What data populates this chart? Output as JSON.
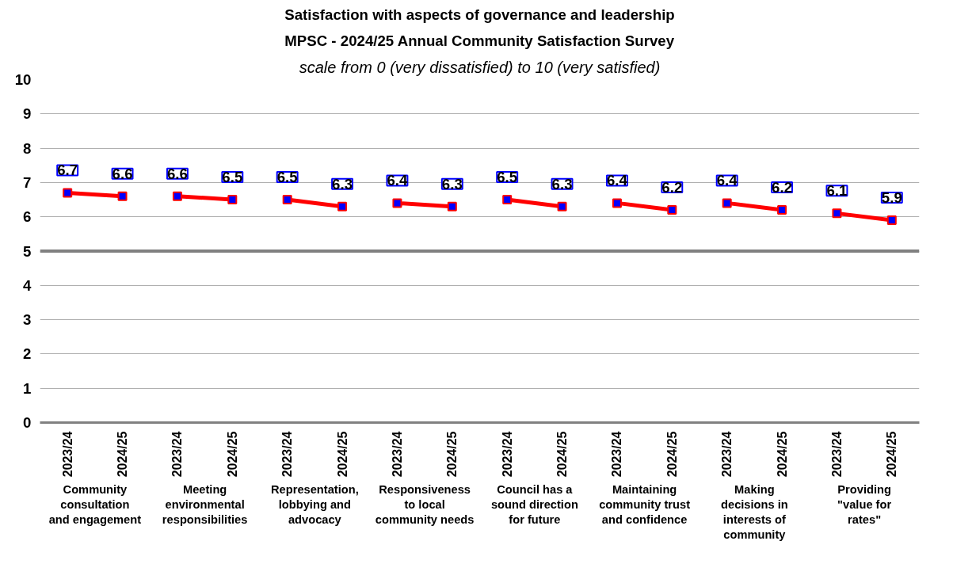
{
  "chart_data": {
    "type": "line",
    "title": "Satisfaction with aspects of governance and leadership",
    "subtitle": "MPSC - 2024/25 Annual Community Satisfaction Survey",
    "annotations": [
      "scale from 0 (very dissatisfied) to 10 (very satisfied)",
      "Community consultation and engagement",
      "Meeting environmental responsibilities",
      "Representation, lobbying and advocacy",
      "Responsiveness to local community needs",
      "Council has a sound direction for future",
      "Maintaining community trust and confidence",
      "Making decisions in interests of community",
      "Providing \"value for rates\""
    ],
    "categories": [
      "2023/24",
      "2024/25",
      "2023/24",
      "2024/25",
      "2023/24",
      "2024/25",
      "2023/24",
      "2024/25",
      "2023/24",
      "2024/25",
      "2023/24",
      "2024/25",
      "2023/24",
      "2024/25",
      "2023/24",
      "2024/25"
    ],
    "series": [
      {
        "color": "#ff0000",
        "values": [
          6.7,
          6.6,
          null,
          null,
          null,
          null,
          null,
          null,
          null,
          null,
          null,
          null,
          null,
          null,
          null,
          null
        ]
      },
      {
        "color": "#ff0000",
        "values": [
          null,
          null,
          6.6,
          6.5,
          null,
          null,
          null,
          null,
          null,
          null,
          null,
          null,
          null,
          null,
          null,
          null
        ]
      },
      {
        "color": "#ff0000",
        "values": [
          null,
          null,
          null,
          null,
          6.5,
          6.3,
          null,
          null,
          null,
          null,
          null,
          null,
          null,
          null,
          null,
          null
        ]
      },
      {
        "color": "#ff0000",
        "values": [
          null,
          null,
          null,
          null,
          null,
          null,
          6.4,
          6.3,
          null,
          null,
          null,
          null,
          null,
          null,
          null,
          null
        ]
      },
      {
        "color": "#ff0000",
        "values": [
          null,
          null,
          null,
          null,
          null,
          null,
          null,
          null,
          6.5,
          6.3,
          null,
          null,
          null,
          null,
          null,
          null
        ]
      },
      {
        "color": "#ff0000",
        "values": [
          null,
          null,
          null,
          null,
          null,
          null,
          null,
          null,
          null,
          null,
          6.4,
          6.2,
          null,
          null,
          null,
          null
        ]
      },
      {
        "color": "#ff0000",
        "values": [
          null,
          null,
          null,
          null,
          null,
          null,
          null,
          null,
          null,
          null,
          null,
          null,
          6.4,
          6.2,
          null,
          null
        ]
      },
      {
        "color": "#ff0000",
        "values": [
          null,
          null,
          null,
          null,
          null,
          null,
          null,
          null,
          null,
          null,
          null,
          null,
          null,
          null,
          6.1,
          5.9
        ]
      }
    ],
    "ylim": [
      0,
      10
    ],
    "yticks": [
      0,
      1,
      2,
      3,
      4,
      5,
      6,
      7,
      8,
      9,
      10
    ],
    "grid": "y",
    "marker": "square",
    "line_style": "solid",
    "data_labels": true,
    "ref_lines": [
      {
        "axis": "y",
        "value": 5,
        "color": "#808080"
      }
    ]
  }
}
